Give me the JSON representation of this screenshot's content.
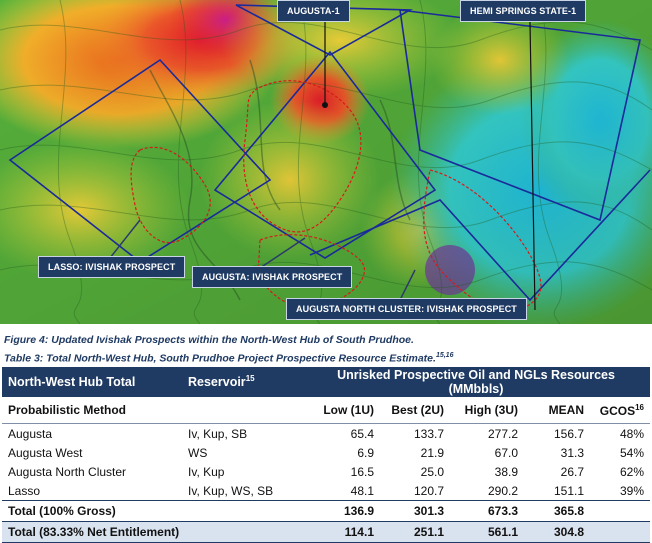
{
  "map": {
    "labels": [
      {
        "id": "augusta-1",
        "text": "AUGUSTA-1"
      },
      {
        "id": "hemi-springs",
        "text": "HEMI SPRINGS STATE-1"
      },
      {
        "id": "lasso",
        "text": "LASSO: IVISHAK PROSPECT"
      },
      {
        "id": "augusta-ivishak",
        "text": "AUGUSTA: IVISHAK PROSPECT"
      },
      {
        "id": "augusta-north",
        "text": "AUGUSTA NORTH CLUSTER: IVISHAK PROSPECT"
      }
    ],
    "colors": {
      "label_bg": "#1f3a63",
      "outline": "#1a2a9a",
      "prospect": "#d61a1a"
    }
  },
  "figure_caption": "Figure 4: Updated Ivishak Prospects within the North-West Hub of South Prudhoe.",
  "table_caption": "Table 3: Total North-West Hub, South Prudhoe Project Prospective Resource Estimate.",
  "table_caption_sup": "15,16",
  "table": {
    "header": {
      "col1": "North-West Hub Total",
      "col2": "Reservoir",
      "col2_sup": "15",
      "col3": "Unrisked Prospective Oil and NGLs Resources (MMbbls)"
    },
    "subheader": {
      "method": "Probabilistic Method",
      "low": "Low (1U)",
      "best": "Best (2U)",
      "high": "High (3U)",
      "mean": "MEAN",
      "gcos": "GCOS",
      "gcos_sup": "16"
    },
    "rows": [
      {
        "name": "Augusta",
        "reservoir": "Iv, Kup, SB",
        "low": "65.4",
        "best": "133.7",
        "high": "277.2",
        "mean": "156.7",
        "gcos": "48%"
      },
      {
        "name": "Augusta West",
        "reservoir": "WS",
        "low": "6.9",
        "best": "21.9",
        "high": "67.0",
        "mean": "31.3",
        "gcos": "54%"
      },
      {
        "name": "Augusta North Cluster",
        "reservoir": "Iv, Kup",
        "low": "16.5",
        "best": "25.0",
        "high": "38.9",
        "mean": "26.7",
        "gcos": "62%"
      },
      {
        "name": "Lasso",
        "reservoir": "Iv, Kup, WS, SB",
        "low": "48.1",
        "best": "120.7",
        "high": "290.2",
        "mean": "151.1",
        "gcos": "39%"
      }
    ],
    "total": {
      "name": "Total (100% Gross)",
      "low": "136.9",
      "best": "301.3",
      "high": "673.3",
      "mean": "365.8"
    },
    "net": {
      "name": "Total (83.33% Net Entitlement)",
      "low": "114.1",
      "best": "251.1",
      "high": "561.1",
      "mean": "304.8"
    }
  }
}
